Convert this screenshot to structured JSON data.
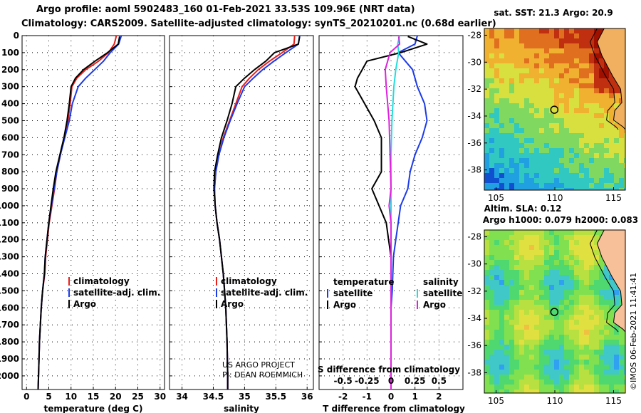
{
  "header": {
    "line1": "Argo profile: aoml 5902483_160 01-Feb-2021 33.53S 109.96E (NRT data)",
    "line2": "Climatology: CARS2009. Satellite-adjusted climatology: synTS_20210201.nc (0.68d earlier)"
  },
  "credits": {
    "project": "US ARGO PROJECT",
    "pi": "PI: DEAN ROEMMICH",
    "imos": "©IMOS 06-Feb-2021 11:41:41"
  },
  "colors": {
    "climatology": "#e8201c",
    "satellite": "#1c3be8",
    "argo": "#000000",
    "argo_sal_diff": "#dd22dd",
    "sat_sal_diff": "#22dddd"
  },
  "chart_data": [
    {
      "type": "line",
      "title": "",
      "xlabel": "temperature (deg C)",
      "ylabel": "",
      "xlim": [
        -1,
        31
      ],
      "ylim": [
        2080,
        0
      ],
      "xticks": [
        "0",
        "5",
        "10",
        "15",
        "20",
        "25",
        "30"
      ],
      "yticks": [
        "0",
        "100",
        "200",
        "300",
        "400",
        "500",
        "600",
        "700",
        "800",
        "900",
        "1000",
        "1100",
        "1200",
        "1300",
        "1400",
        "1500",
        "1600",
        "1700",
        "1800",
        "1900",
        "2000"
      ],
      "legend": [
        "climatology",
        "satellite-adj. clim.",
        "Argo"
      ],
      "legend_location": "lower-right",
      "series": [
        {
          "name": "climatology",
          "x": [
            20.2,
            19.7,
            18.4,
            16.2,
            13.3,
            11.3,
            10.2,
            9.8,
            9.3,
            8.5,
            7.6,
            6.8,
            6.3,
            5.7,
            5.1,
            4.7,
            4.3,
            4.1,
            3.6,
            3.3,
            2.9,
            2.7,
            2.6
          ],
          "y": [
            0,
            50,
            100,
            150,
            200,
            250,
            300,
            400,
            500,
            600,
            700,
            800,
            900,
            1000,
            1100,
            1200,
            1300,
            1400,
            1500,
            1600,
            1800,
            2000,
            2080
          ]
        },
        {
          "name": "satellite-adj. clim.",
          "x": [
            21.3,
            20.7,
            18.8,
            17.3,
            15.3,
            13.3,
            11.6,
            10.3,
            9.6,
            8.6,
            7.6,
            6.8,
            6.2,
            5.6,
            5.0,
            4.6,
            4.2,
            4.0,
            3.6,
            3.3,
            2.9,
            2.7,
            2.6
          ],
          "y": [
            0,
            50,
            100,
            150,
            200,
            250,
            300,
            400,
            500,
            600,
            700,
            800,
            900,
            1000,
            1100,
            1200,
            1300,
            1400,
            1500,
            1600,
            1800,
            2000,
            2080
          ]
        },
        {
          "name": "Argo",
          "x": [
            20.9,
            20.6,
            18.2,
            15.4,
            12.8,
            11.0,
            10.0,
            9.6,
            9.1,
            8.4,
            7.5,
            6.6,
            6.0,
            5.5,
            5.0,
            4.6,
            4.2,
            4.0,
            3.6,
            3.3,
            2.9,
            2.7,
            2.6
          ],
          "y": [
            5,
            50,
            100,
            150,
            200,
            250,
            300,
            400,
            500,
            600,
            700,
            800,
            900,
            1000,
            1100,
            1200,
            1300,
            1400,
            1500,
            1600,
            1800,
            2000,
            2080
          ]
        }
      ]
    },
    {
      "type": "line",
      "title": "",
      "xlabel": "salinity",
      "ylabel": "",
      "xlim": [
        33.8,
        36.1
      ],
      "ylim": [
        2080,
        0
      ],
      "xticks": [
        "34",
        "34.5",
        "35",
        "35.5",
        "36"
      ],
      "legend": [
        "climatology",
        "satellite-adj. clim.",
        "Argo"
      ],
      "legend_location": "lower-right",
      "series": [
        {
          "name": "climatology",
          "x": [
            35.8,
            35.79,
            35.6,
            35.4,
            35.22,
            35.08,
            34.96,
            34.86,
            34.76,
            34.66,
            34.59,
            34.54,
            34.52,
            34.53,
            34.56,
            34.6,
            34.63,
            34.66,
            34.68,
            34.7,
            34.72,
            34.73,
            34.73
          ],
          "y": [
            0,
            50,
            100,
            150,
            200,
            250,
            300,
            400,
            500,
            600,
            700,
            800,
            900,
            1000,
            1100,
            1200,
            1300,
            1400,
            1500,
            1600,
            1800,
            2000,
            2080
          ]
        },
        {
          "name": "satellite-adj. clim.",
          "x": [
            35.88,
            35.86,
            35.66,
            35.47,
            35.29,
            35.14,
            35.0,
            34.88,
            34.77,
            34.67,
            34.59,
            34.54,
            34.52,
            34.53,
            34.56,
            34.6,
            34.63,
            34.66,
            34.68,
            34.7,
            34.72,
            34.73,
            34.73
          ],
          "y": [
            0,
            50,
            100,
            150,
            200,
            250,
            300,
            400,
            500,
            600,
            700,
            800,
            900,
            1000,
            1100,
            1200,
            1300,
            1400,
            1500,
            1600,
            1800,
            2000,
            2080
          ]
        },
        {
          "name": "Argo",
          "x": [
            35.88,
            35.86,
            35.48,
            35.34,
            35.16,
            35.0,
            34.86,
            34.8,
            34.72,
            34.63,
            34.57,
            34.52,
            34.51,
            34.53,
            34.56,
            34.6,
            34.63,
            34.66,
            34.68,
            34.7,
            34.72,
            34.73,
            34.73
          ],
          "y": [
            5,
            50,
            100,
            150,
            200,
            250,
            300,
            400,
            500,
            600,
            700,
            800,
            900,
            1000,
            1100,
            1200,
            1300,
            1400,
            1500,
            1600,
            1800,
            2000,
            2080
          ]
        }
      ]
    },
    {
      "type": "line",
      "title": "",
      "xlabel": "T difference from climatology",
      "xlabel2": "S difference from climatology",
      "ylabel": "",
      "xlim": [
        -3,
        3
      ],
      "ylim": [
        2080,
        0
      ],
      "xticks": [
        "-2",
        "-1",
        "0",
        "1",
        "2"
      ],
      "xticks2": [
        "-0.5",
        "-0.25",
        "0",
        "0.25",
        "0.5"
      ],
      "legend_left_title": "temperature",
      "legend_right_title": "salinity",
      "legend": [
        "satellite",
        "Argo",
        "satellite",
        "Argo"
      ],
      "legend_location": "lower-center",
      "series": [
        {
          "name": "T satellite",
          "x": [
            1.1,
            1.0,
            0.3,
            0.9,
            1.1,
            1.4,
            1.5,
            1.3,
            1.0,
            0.8,
            0.7,
            0.4,
            0.3,
            0.2,
            0.1,
            0.05,
            0.0,
            0.0,
            0.0,
            0.0
          ],
          "y": [
            0,
            50,
            100,
            200,
            300,
            400,
            500,
            600,
            700,
            800,
            900,
            1000,
            1100,
            1200,
            1300,
            1500,
            1600,
            1800,
            2000,
            2080
          ]
        },
        {
          "name": "T Argo",
          "x": [
            0.7,
            1.5,
            0.4,
            -1.0,
            -1.4,
            -1.5,
            -1.1,
            -0.7,
            -0.4,
            -0.4,
            -0.8,
            -0.5,
            -0.2,
            -0.1,
            0.0,
            0.0,
            0.0,
            0.0,
            0.0,
            0.0
          ],
          "y": [
            5,
            50,
            100,
            150,
            250,
            300,
            400,
            500,
            600,
            800,
            900,
            1000,
            1100,
            1200,
            1300,
            1500,
            1600,
            1800,
            2000,
            2080
          ]
        },
        {
          "name": "S satellite",
          "x": [
            0.09,
            0.07,
            0.08,
            0.05,
            0.03,
            0.01,
            0.0,
            0.0,
            0.0,
            0.0,
            0.0,
            0.0,
            0.0,
            0.0,
            0.0
          ],
          "y": [
            0,
            50,
            100,
            200,
            300,
            500,
            700,
            900,
            1000,
            1100,
            1300,
            1500,
            1700,
            1900,
            2080
          ]
        },
        {
          "name": "S Argo",
          "x": [
            0.08,
            0.09,
            -0.01,
            -0.06,
            -0.05,
            -0.02,
            -0.01,
            0.0,
            -0.02,
            0.0,
            0.0,
            0.0,
            0.0,
            0.0,
            0.0
          ],
          "y": [
            5,
            50,
            100,
            200,
            300,
            500,
            700,
            900,
            1000,
            1100,
            1300,
            1500,
            1700,
            1900,
            2080
          ]
        }
      ]
    },
    {
      "type": "heatmap",
      "title": "sat. SST: 21.3 Argo: 20.9",
      "xlabel": "",
      "ylabel": "",
      "xlim": [
        104,
        116
      ],
      "ylim": [
        -39.5,
        -27.5
      ],
      "xticks": [
        "105",
        "110",
        "115"
      ],
      "yticks": [
        "-28",
        "-30",
        "-32",
        "-34",
        "-36",
        "-38"
      ],
      "profile_location": {
        "lon": 109.96,
        "lat": -33.53
      },
      "colormap": [
        "#1050d0",
        "#20a0e0",
        "#30c8c0",
        "#80d860",
        "#d8e040",
        "#f0b030",
        "#e07020",
        "#c03010",
        "#a01000"
      ]
    },
    {
      "type": "heatmap",
      "title": "Altim. SLA: 0.12",
      "subtitle": "Argo h1000: 0.079 h2000: 0.083",
      "xlabel": "",
      "ylabel": "",
      "xlim": [
        104,
        116
      ],
      "ylim": [
        -39.5,
        -27.5
      ],
      "xticks": [
        "105",
        "110",
        "115"
      ],
      "yticks": [
        "-28",
        "-30",
        "-32",
        "-34",
        "-36",
        "-38"
      ],
      "profile_location": {
        "lon": 109.96,
        "lat": -33.53
      },
      "land_color": "#f8c098"
    }
  ]
}
